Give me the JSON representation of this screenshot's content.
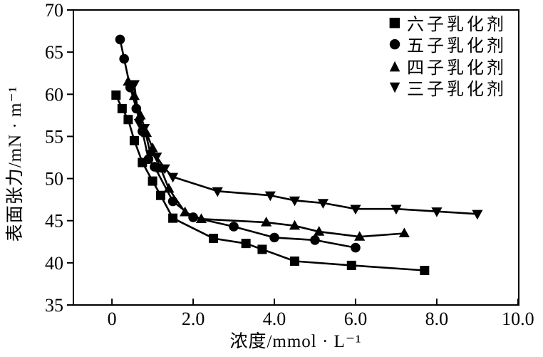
{
  "chart_data": {
    "type": "line",
    "title": "",
    "xlabel": "浓度/mmol · L⁻¹",
    "ylabel": "表面张力/mN · m⁻¹",
    "xlim": [
      -0.95,
      10.02
    ],
    "ylim": [
      35,
      70
    ],
    "grid": false,
    "legend_position": "top-right-inside",
    "axis_color": "#000000",
    "background_color": "#ffffff",
    "x_ticks": {
      "values": [
        0,
        2,
        4,
        6,
        8,
        10
      ],
      "labels": [
        "0",
        "2.0",
        "4.0",
        "6.0",
        "8.0",
        "10.0"
      ]
    },
    "y_ticks": {
      "values": [
        35,
        40,
        45,
        50,
        55,
        60,
        65,
        70
      ],
      "labels": [
        "35",
        "40",
        "45",
        "50",
        "55",
        "60",
        "65",
        "70"
      ]
    },
    "series": [
      {
        "name": "六子乳化剂",
        "marker": "square",
        "color": "#000000",
        "points": [
          [
            0.1,
            59.9
          ],
          [
            0.25,
            58.3
          ],
          [
            0.4,
            57.0
          ],
          [
            0.55,
            54.5
          ],
          [
            0.75,
            51.9
          ],
          [
            1.0,
            49.7
          ],
          [
            1.2,
            48.0
          ],
          [
            1.5,
            45.3
          ],
          [
            2.5,
            42.9
          ],
          [
            3.3,
            42.3
          ],
          [
            3.7,
            41.6
          ],
          [
            4.5,
            40.2
          ],
          [
            5.9,
            39.7
          ],
          [
            7.7,
            39.1
          ]
        ]
      },
      {
        "name": "五子乳化剂",
        "marker": "circle",
        "color": "#000000",
        "points": [
          [
            0.2,
            66.5
          ],
          [
            0.3,
            64.2
          ],
          [
            0.45,
            60.8
          ],
          [
            0.6,
            58.3
          ],
          [
            0.75,
            55.6
          ],
          [
            0.9,
            52.3
          ],
          [
            1.05,
            51.4
          ],
          [
            1.5,
            47.3
          ],
          [
            2.0,
            45.4
          ],
          [
            3.0,
            44.3
          ],
          [
            4.0,
            43.0
          ],
          [
            5.0,
            42.7
          ],
          [
            6.0,
            41.8
          ]
        ]
      },
      {
        "name": "四子乳化剂",
        "marker": "triangle-up",
        "color": "#000000",
        "points": [
          [
            0.4,
            61.5
          ],
          [
            0.55,
            59.8
          ],
          [
            0.7,
            57.5
          ],
          [
            0.85,
            55.4
          ],
          [
            1.0,
            53.6
          ],
          [
            1.2,
            51.2
          ],
          [
            1.4,
            48.8
          ],
          [
            1.8,
            46.0
          ],
          [
            2.2,
            45.2
          ],
          [
            3.8,
            44.8
          ],
          [
            4.5,
            44.4
          ],
          [
            5.1,
            43.7
          ],
          [
            6.1,
            43.1
          ],
          [
            7.2,
            43.5
          ]
        ]
      },
      {
        "name": "三子乳化剂",
        "marker": "triangle-down",
        "color": "#000000",
        "points": [
          [
            0.55,
            61.2
          ],
          [
            0.67,
            56.6
          ],
          [
            0.8,
            56.0
          ],
          [
            0.95,
            52.9
          ],
          [
            1.1,
            52.6
          ],
          [
            1.3,
            51.2
          ],
          [
            1.5,
            50.2
          ],
          [
            2.6,
            48.5
          ],
          [
            3.9,
            48.0
          ],
          [
            4.5,
            47.4
          ],
          [
            5.2,
            47.1
          ],
          [
            6.0,
            46.4
          ],
          [
            7.0,
            46.4
          ],
          [
            8.0,
            46.1
          ],
          [
            9.0,
            45.8
          ]
        ]
      }
    ],
    "legend_marker_glyphs": {
      "square": "■",
      "circle": "●",
      "triangle-up": "▲",
      "triangle-down": "▼"
    }
  }
}
